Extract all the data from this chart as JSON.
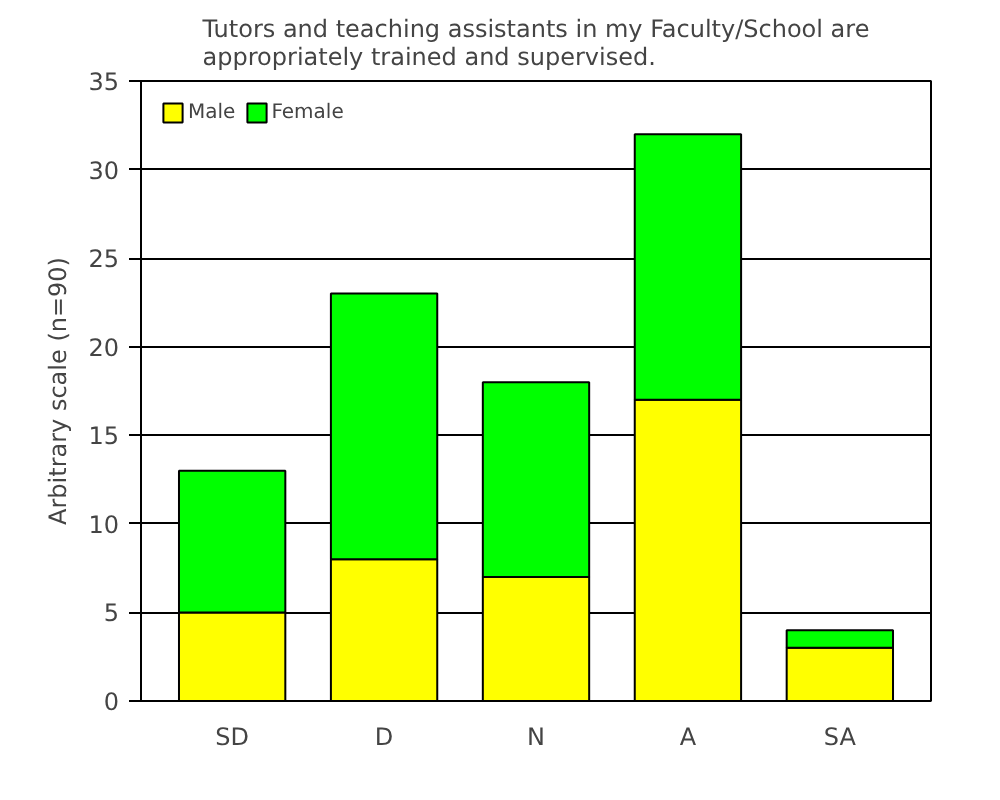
{
  "chart_data": {
    "type": "bar",
    "title": "Tutors and teaching assistants in my Faculty/School are\nappropriately trained and supervised.",
    "ylabel": "Arbitrary scale (n=90)",
    "categories": [
      "SD",
      "D",
      "N",
      "A",
      "SA"
    ],
    "stacked": true,
    "series": [
      {
        "name": "Male",
        "color": "#ffff00",
        "values": [
          5,
          8,
          7,
          17,
          3
        ]
      },
      {
        "name": "Female",
        "color": "#00ff00",
        "values": [
          8,
          15,
          11,
          15,
          1
        ]
      }
    ],
    "ylim": [
      0,
      35
    ],
    "yticks": [
      0,
      5,
      10,
      15,
      20,
      25,
      30,
      35
    ],
    "grid": "y",
    "legend": "top left"
  }
}
